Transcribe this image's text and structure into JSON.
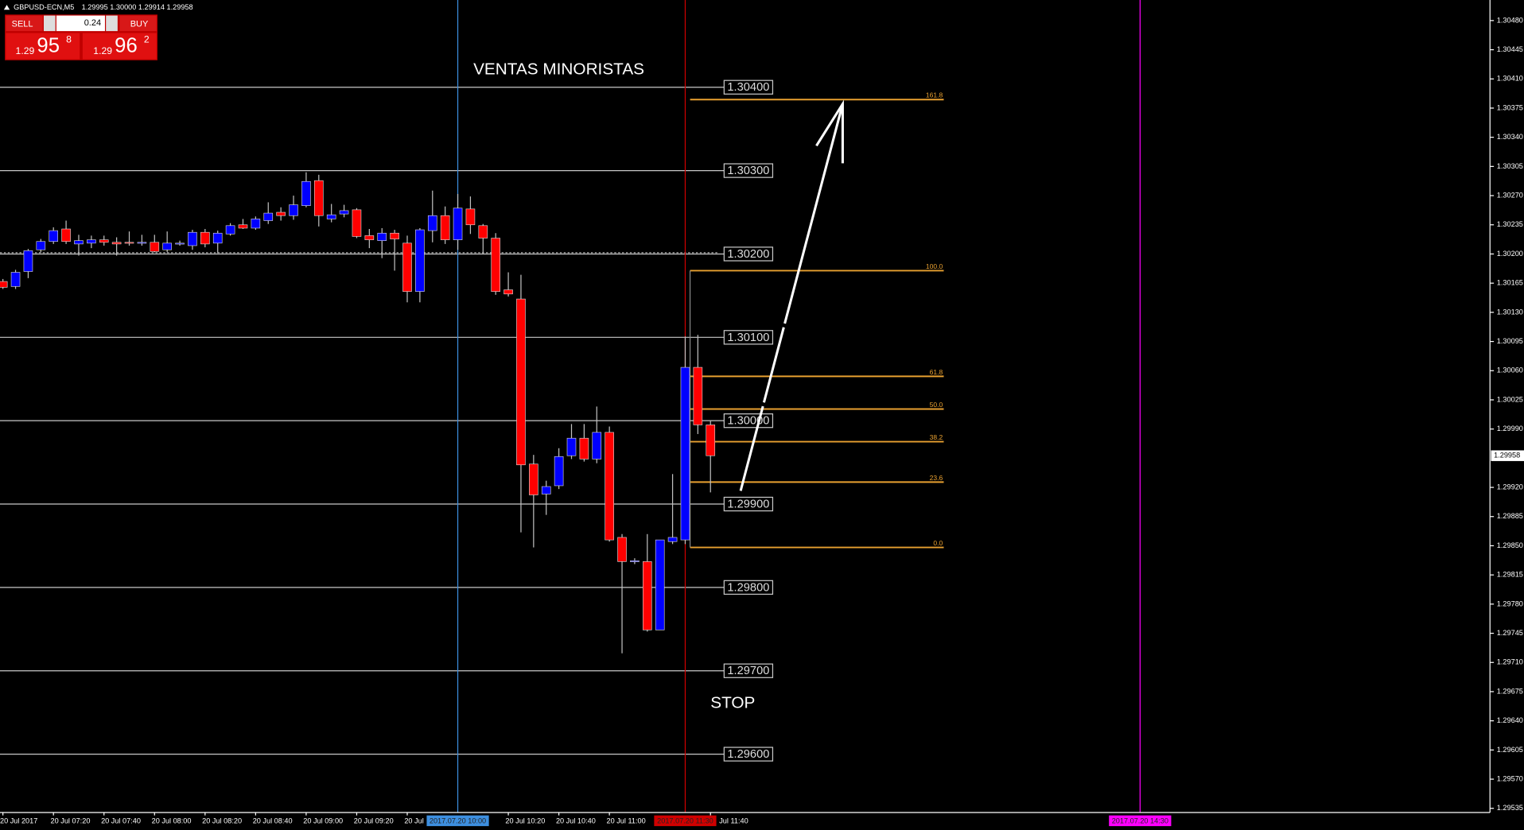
{
  "header": {
    "symbol": "GBPUSD-ECN,M5",
    "ohlc": "1.29995 1.30000 1.29914 1.29958"
  },
  "trade_panel": {
    "sell": "SELL",
    "lot": "0.24",
    "buy": "BUY",
    "sell_big": "1.29",
    "sell_pips": "95",
    "sell_frac": "8",
    "buy_big": "1.29",
    "buy_pips": "96",
    "buy_frac": "2"
  },
  "annotations": {
    "retail": "VENTAS MINORISTAS",
    "stop": "STOP"
  },
  "chart_data": {
    "type": "candlestick",
    "categories": [
      "20 Jul 2017",
      null,
      null,
      null,
      "20 Jul 07:20",
      null,
      null,
      null,
      "20 Jul 07:40",
      null,
      null,
      null,
      "20 Jul 08:00",
      null,
      null,
      null,
      "20 Jul 08:20",
      null,
      null,
      null,
      "20 Jul 08:40",
      null,
      null,
      null,
      "20 Jul 09:00",
      null,
      null,
      null,
      "20 Jul 09:20",
      null,
      null,
      null,
      "20 Jul",
      null,
      null,
      null,
      null,
      null,
      null,
      null,
      "20 Jul 10:20",
      null,
      null,
      null,
      "20 Jul 10:40",
      null,
      null,
      null,
      "20 Jul 11:00",
      null,
      null,
      null,
      null,
      null,
      null,
      null,
      "Jul 11:40"
    ],
    "open": [
      1.30167,
      1.30161,
      1.30179,
      1.30205,
      1.30215,
      1.3023,
      1.30212,
      1.30213,
      1.30217,
      1.30214,
      1.30214,
      1.30213,
      1.30214,
      1.30205,
      1.30213,
      1.3021,
      1.30226,
      1.30213,
      1.30224,
      1.30235,
      1.30231,
      1.3024,
      1.3025,
      1.30246,
      1.30258,
      1.30288,
      1.30242,
      1.30248,
      1.30253,
      1.30222,
      1.30216,
      1.30225,
      1.30213,
      1.30155,
      1.30228,
      1.30246,
      1.30217,
      1.30254,
      1.30234,
      1.30219,
      1.30157,
      1.30146,
      1.29948,
      1.29912,
      1.29922,
      1.29958,
      1.29979,
      1.29954,
      1.29986,
      1.2986,
      1.29831,
      1.29831,
      1.29749,
      1.29855,
      1.29857,
      1.30064,
      1.29995
    ],
    "high": [
      1.3017,
      1.30181,
      1.30206,
      1.30218,
      1.30232,
      1.3024,
      1.30223,
      1.30222,
      1.30222,
      1.3022,
      1.30227,
      1.30223,
      1.30223,
      1.30227,
      1.30216,
      1.30229,
      1.3023,
      1.30228,
      1.30237,
      1.30242,
      1.30245,
      1.30262,
      1.30256,
      1.3027,
      1.30298,
      1.30295,
      1.3026,
      1.30259,
      1.30255,
      1.3023,
      1.30231,
      1.30229,
      1.30222,
      1.30231,
      1.30276,
      1.30257,
      1.30272,
      1.30269,
      1.30236,
      1.30225,
      1.30178,
      1.30175,
      1.29959,
      1.29928,
      1.29967,
      1.29996,
      1.29996,
      1.30017,
      1.29993,
      1.29864,
      1.29835,
      1.29864,
      1.29857,
      1.29936,
      1.30101,
      1.30103,
      1.3
    ],
    "low": [
      1.30158,
      1.30158,
      1.30171,
      1.30202,
      1.30212,
      1.30212,
      1.30198,
      1.30207,
      1.3021,
      1.30198,
      1.3021,
      1.3021,
      1.30202,
      1.30202,
      1.3021,
      1.30205,
      1.30208,
      1.30201,
      1.30222,
      1.3023,
      1.30229,
      1.30236,
      1.3024,
      1.30241,
      1.30256,
      1.30233,
      1.30238,
      1.30244,
      1.30219,
      1.30207,
      1.30195,
      1.3018,
      1.30142,
      1.30142,
      1.30214,
      1.30212,
      1.30205,
      1.30224,
      1.302,
      1.30151,
      1.30149,
      1.29866,
      1.29848,
      1.29887,
      1.29918,
      1.29954,
      1.29951,
      1.29949,
      1.29855,
      1.29721,
      1.29828,
      1.29747,
      1.29749,
      1.29852,
      1.29852,
      1.29984,
      1.29914
    ],
    "close": [
      1.3016,
      1.30178,
      1.30204,
      1.30215,
      1.30228,
      1.30215,
      1.30216,
      1.30217,
      1.30214,
      1.30212,
      1.30213,
      1.30214,
      1.30203,
      1.30213,
      1.30213,
      1.30226,
      1.30212,
      1.30225,
      1.30234,
      1.30231,
      1.30242,
      1.30249,
      1.30246,
      1.30259,
      1.30287,
      1.30246,
      1.30247,
      1.30252,
      1.30221,
      1.30217,
      1.30225,
      1.30218,
      1.30155,
      1.30229,
      1.30246,
      1.30217,
      1.30255,
      1.30235,
      1.30219,
      1.30155,
      1.30152,
      1.29947,
      1.29911,
      1.29921,
      1.29957,
      1.29979,
      1.29954,
      1.29986,
      1.29857,
      1.29831,
      1.29832,
      1.29749,
      1.29857,
      1.2986,
      1.30064,
      1.29995,
      1.29958
    ],
    "up_color": "#0000ff",
    "down_color": "#ff0000",
    "wick_color": "#c0c0c0",
    "ylim": [
      1.2953,
      1.305
    ],
    "yticks": [
      {
        "value": 1.3048,
        "label": "1.30480"
      },
      1.30445,
      {
        "value": 1.3041,
        "label": "1.30410"
      },
      1.30375,
      {
        "value": 1.3034,
        "label": "1.30340"
      },
      1.30305,
      {
        "value": 1.3027,
        "label": "1.30270"
      },
      1.30235,
      {
        "value": 1.302,
        "label": "1.30200"
      },
      1.30165,
      {
        "value": 1.3013,
        "label": "1.30130"
      },
      1.30095,
      {
        "value": 1.3006,
        "label": "1.30060"
      },
      1.30025,
      {
        "value": 1.2999,
        "label": "1.29990"
      },
      {
        "value": 1.2992,
        "label": "1.29920"
      },
      1.29885,
      {
        "value": 1.2985,
        "label": "1.29850"
      },
      1.29815,
      {
        "value": 1.2978,
        "label": "1.29780"
      },
      1.29745,
      {
        "value": 1.2971,
        "label": "1.29710"
      },
      1.29675,
      {
        "value": 1.2964,
        "label": "1.29640"
      },
      1.29605,
      {
        "value": 1.2957,
        "label": "1.29570"
      },
      1.29535
    ],
    "last_price": 1.29958,
    "levels": [
      {
        "value": 1.304,
        "label": "1.30400"
      },
      {
        "value": 1.303,
        "label": "1.30300"
      },
      {
        "value": 1.302,
        "label": "1.30200"
      },
      {
        "value": 1.301,
        "label": "1.30100"
      },
      {
        "value": 1.3,
        "label": "1.30000"
      },
      {
        "value": 1.299,
        "label": "1.29900"
      },
      {
        "value": 1.298,
        "label": "1.29800"
      },
      {
        "value": 1.297,
        "label": "1.29700"
      },
      {
        "value": 1.296,
        "label": "1.29600"
      }
    ],
    "fibo": {
      "low": 1.29848,
      "high": 1.3018,
      "color": "#e8a030",
      "levels": [
        161.8,
        {
          "value": 100,
          "label": "100.0"
        },
        61.8,
        {
          "value": 50,
          "label": "50.0"
        },
        38.2,
        23.6,
        {
          "value": 0,
          "label": "0.0"
        }
      ]
    },
    "vlines": [
      {
        "index": 36,
        "color": "#3d8fe0",
        "label": "2017.07.20 10:00"
      },
      {
        "index": 54,
        "color": "#d00000",
        "label": "2017.07.20 11:30"
      },
      {
        "index": 90,
        "color": "#ff00ff",
        "label": "2017.07.20 14:30"
      }
    ]
  }
}
